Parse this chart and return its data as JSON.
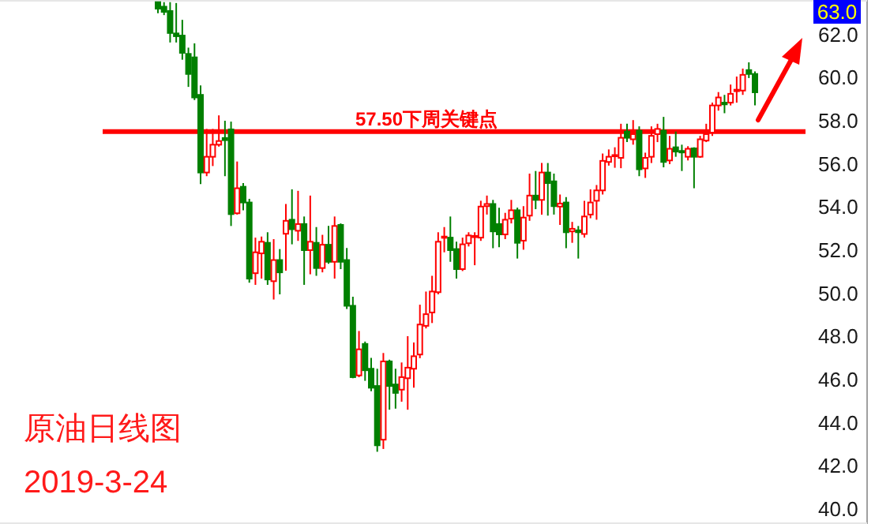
{
  "chart_data": {
    "type": "candlestick",
    "categories": [
      null,
      null,
      null,
      null,
      null,
      null,
      null,
      null,
      null,
      null,
      null,
      null,
      null,
      null,
      null,
      null,
      null,
      null,
      null,
      null,
      null,
      null,
      null,
      null,
      null,
      null,
      null,
      null,
      null,
      null,
      null,
      null,
      null,
      null,
      null,
      null,
      null,
      null,
      null,
      null,
      null,
      null,
      null,
      null,
      null,
      null,
      null,
      null,
      null,
      null,
      null,
      null,
      null,
      null,
      null,
      null,
      null,
      null,
      null,
      null,
      null,
      null,
      null,
      null,
      null,
      null,
      null,
      null,
      null,
      null,
      null,
      null,
      null,
      null,
      null,
      null,
      null,
      null,
      null,
      null,
      null,
      null,
      null,
      null,
      null,
      null,
      null,
      null,
      null,
      null,
      null,
      null,
      null,
      null,
      null,
      null,
      null,
      null,
      null
    ],
    "ohlc": [
      [
        63.5,
        63.5,
        62.99,
        63.2
      ],
      [
        63.29,
        63.5,
        62.9,
        63.05
      ],
      [
        63.09,
        63.5,
        61.63,
        62.07
      ],
      [
        62.05,
        63.46,
        61.63,
        61.92
      ],
      [
        61.95,
        62.68,
        60.83,
        61.15
      ],
      [
        61.1,
        61.39,
        59.57,
        60.17
      ],
      [
        60.94,
        61.59,
        58.96,
        59.08
      ],
      [
        59.2,
        59.64,
        55.06,
        55.6
      ],
      [
        55.6,
        57.62,
        55.43,
        56.33
      ],
      [
        56.33,
        57.62,
        55.9,
        56.89
      ],
      [
        56.89,
        58.25,
        56.8,
        57.06
      ],
      [
        57.2,
        58.0,
        55.43,
        57.1
      ],
      [
        57.6,
        57.96,
        53.12,
        53.67
      ],
      [
        53.71,
        56.11,
        53.65,
        54.87
      ],
      [
        54.94,
        55.11,
        53.85,
        54.21
      ],
      [
        54.21,
        54.38,
        50.49,
        50.68
      ],
      [
        50.93,
        52.58,
        50.39,
        51.9
      ],
      [
        51.85,
        52.63,
        50.68,
        52.39
      ],
      [
        52.34,
        52.83,
        50.39,
        50.64
      ],
      [
        50.56,
        52.51,
        49.71,
        51.54
      ],
      [
        51.54,
        52.05,
        49.95,
        50.97
      ],
      [
        52.76,
        54.14,
        51.05,
        53.36
      ],
      [
        53.41,
        54.82,
        52.27,
        52.97
      ],
      [
        52.9,
        54.75,
        52.43,
        53.21
      ],
      [
        53.21,
        53.56,
        50.39,
        52.0
      ],
      [
        52.0,
        54.53,
        50.88,
        52.39
      ],
      [
        52.34,
        53.07,
        50.81,
        51.17
      ],
      [
        51.17,
        52.71,
        50.97,
        52.25
      ],
      [
        52.25,
        53.12,
        51.37,
        51.46
      ],
      [
        51.46,
        53.56,
        50.68,
        53.12
      ],
      [
        53.17,
        53.24,
        51.12,
        51.46
      ],
      [
        51.54,
        52.1,
        49.27,
        49.42
      ],
      [
        49.42,
        49.84,
        46.06,
        46.11
      ],
      [
        46.19,
        48.25,
        46.11,
        47.4
      ],
      [
        47.65,
        47.76,
        45.94,
        46.43
      ],
      [
        46.5,
        47.0,
        45.46,
        45.62
      ],
      [
        45.7,
        46.5,
        42.65,
        42.95
      ],
      [
        43.21,
        47.23,
        42.78,
        46.84
      ],
      [
        46.84,
        46.92,
        44.6,
        45.7
      ],
      [
        45.77,
        46.5,
        44.65,
        45.38
      ],
      [
        45.53,
        46.79,
        44.97,
        46.11
      ],
      [
        46.06,
        48.01,
        44.6,
        46.55
      ],
      [
        46.5,
        47.72,
        45.62,
        47.08
      ],
      [
        47.16,
        49.47,
        46.99,
        48.55
      ],
      [
        48.49,
        50.08,
        48.37,
        49.03
      ],
      [
        49.11,
        50.81,
        48.62,
        50.08
      ],
      [
        50.05,
        52.83,
        49.95,
        52.39
      ],
      [
        52.58,
        53.07,
        51.9,
        52.63
      ],
      [
        52.58,
        53.56,
        51.46,
        52.0
      ],
      [
        52.05,
        52.39,
        50.68,
        51.12
      ],
      [
        51.12,
        52.58,
        51.03,
        52.27
      ],
      [
        52.32,
        52.83,
        52.17,
        52.68
      ],
      [
        52.63,
        52.83,
        51.3,
        52.66
      ],
      [
        52.58,
        54.29,
        52.43,
        54.02
      ],
      [
        54.04,
        54.53,
        53.65,
        54.14
      ],
      [
        54.14,
        54.33,
        52.09,
        52.87
      ],
      [
        53.21,
        53.97,
        52.14,
        52.73
      ],
      [
        52.73,
        53.73,
        52.51,
        53.41
      ],
      [
        53.46,
        54.33,
        53.24,
        53.85
      ],
      [
        53.85,
        53.97,
        51.61,
        52.34
      ],
      [
        52.44,
        54.04,
        52.02,
        53.51
      ],
      [
        53.6,
        55.55,
        53.36,
        54.53
      ],
      [
        54.53,
        55.67,
        53.9,
        54.33
      ],
      [
        54.33,
        56.04,
        53.65,
        55.6
      ],
      [
        55.6,
        56.04,
        53.6,
        55.11
      ],
      [
        55.19,
        55.55,
        53.65,
        54.04
      ],
      [
        54.02,
        54.58,
        53.17,
        54.16
      ],
      [
        54.21,
        54.46,
        52.09,
        52.83
      ],
      [
        52.87,
        53.31,
        52.34,
        52.99
      ],
      [
        52.92,
        53.12,
        51.61,
        52.83
      ],
      [
        52.75,
        54.29,
        52.58,
        53.56
      ],
      [
        53.65,
        54.82,
        53.48,
        54.21
      ],
      [
        54.29,
        55.02,
        53.41,
        54.77
      ],
      [
        54.77,
        56.48,
        54.58,
        56.14
      ],
      [
        56.09,
        56.67,
        55.92,
        56.33
      ],
      [
        56.36,
        56.77,
        55.82,
        56.41
      ],
      [
        56.28,
        57.86,
        55.8,
        57.21
      ],
      [
        57.5,
        57.86,
        57.01,
        57.21
      ],
      [
        57.14,
        58.03,
        56.89,
        57.38
      ],
      [
        57.54,
        57.74,
        55.43,
        55.75
      ],
      [
        55.79,
        56.52,
        55.35,
        56.28
      ],
      [
        56.33,
        57.74,
        56.04,
        57.3
      ],
      [
        57.38,
        57.86,
        57.01,
        57.62
      ],
      [
        57.54,
        58.18,
        55.84,
        56.09
      ],
      [
        56.16,
        57.3,
        55.99,
        56.7
      ],
      [
        56.77,
        57.5,
        56.33,
        56.57
      ],
      [
        56.6,
        56.89,
        55.67,
        56.53
      ],
      [
        56.33,
        56.82,
        56.16,
        56.7
      ],
      [
        56.72,
        56.77,
        54.87,
        56.33
      ],
      [
        56.33,
        57.3,
        56.28,
        57.14
      ],
      [
        57.08,
        57.86,
        57.01,
        57.38
      ],
      [
        57.45,
        58.84,
        57.3,
        58.71
      ],
      [
        58.71,
        59.33,
        58.47,
        59.08
      ],
      [
        58.84,
        59.2,
        58.35,
        58.76
      ],
      [
        58.84,
        59.68,
        58.71,
        59.25
      ],
      [
        59.37,
        60.05,
        58.84,
        59.44
      ],
      [
        59.4,
        60.42,
        59.2,
        60.13
      ],
      [
        60.35,
        60.71,
        59.98,
        60.17
      ],
      [
        60.17,
        60.29,
        58.71,
        59.32
      ]
    ],
    "colors": [
      "#008000",
      "#008000",
      "#008000",
      "#008000",
      "#008000",
      "#008000",
      "#008000",
      "#008000",
      "#ff0000",
      "#ff0000",
      "#ff0000",
      "#008000",
      "#008000",
      "#ff0000",
      "#008000",
      "#008000",
      "#ff0000",
      "#ff0000",
      "#008000",
      "#ff0000",
      "#008000",
      "#ff0000",
      "#008000",
      "#ff0000",
      "#008000",
      "#ff0000",
      "#008000",
      "#ff0000",
      "#008000",
      "#ff0000",
      "#008000",
      "#008000",
      "#008000",
      "#ff0000",
      "#008000",
      "#008000",
      "#008000",
      "#ff0000",
      "#008000",
      "#008000",
      "#ff0000",
      "#ff0000",
      "#ff0000",
      "#ff0000",
      "#ff0000",
      "#ff0000",
      "#ff0000",
      "#ff0000",
      "#008000",
      "#008000",
      "#ff0000",
      "#ff0000",
      "#ff0000",
      "#ff0000",
      "#ff0000",
      "#008000",
      "#008000",
      "#ff0000",
      "#ff0000",
      "#008000",
      "#ff0000",
      "#ff0000",
      "#008000",
      "#ff0000",
      "#008000",
      "#008000",
      "#ff0000",
      "#008000",
      "#ff0000",
      "#008000",
      "#ff0000",
      "#ff0000",
      "#ff0000",
      "#ff0000",
      "#ff0000",
      "#ff0000",
      "#ff0000",
      "#008000",
      "#ff0000",
      "#008000",
      "#ff0000",
      "#ff0000",
      "#ff0000",
      "#008000",
      "#ff0000",
      "#008000",
      "#008000",
      "#ff0000",
      "#008000",
      "#ff0000",
      "#ff0000",
      "#ff0000",
      "#ff0000",
      "#008000",
      "#ff0000",
      "#ff0000",
      "#ff0000",
      "#008000",
      "#008000"
    ],
    "ylim": [
      39.3,
      63.6
    ],
    "yticks": [
      {
        "value": 40,
        "label": "40.0"
      },
      {
        "value": 42,
        "label": "42.0"
      },
      {
        "value": 44,
        "label": "44.0"
      },
      {
        "value": 46,
        "label": "46.0"
      },
      {
        "value": 48,
        "label": "48.0"
      },
      {
        "value": 50,
        "label": "50.0"
      },
      {
        "value": 52,
        "label": "52.0"
      },
      {
        "value": 54,
        "label": "54.0"
      },
      {
        "value": 56,
        "label": "56.0"
      },
      {
        "value": 58,
        "label": "58.0"
      },
      {
        "value": 60,
        "label": "60.0"
      },
      {
        "value": 62,
        "label": "62.0"
      }
    ],
    "tick_labels": "y",
    "grid": false,
    "ref_lines": [
      {
        "axis": "y",
        "value": 57.5,
        "label": "57.50下周关键点",
        "color": "#ff0000"
      }
    ],
    "annotations": [
      "原油日线图",
      "2019-3-24",
      "63.0"
    ]
  }
}
